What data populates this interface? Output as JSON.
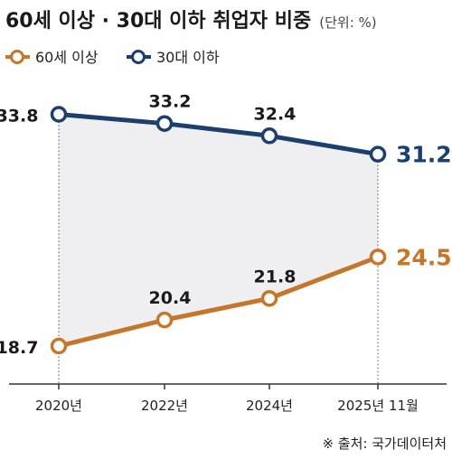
{
  "chart_data": {
    "type": "line",
    "title": "60세 이상 · 30대 이하 취업자 비중",
    "unit_note": "(단위: %)",
    "categories": [
      "2020년",
      "2022년",
      "2024년",
      "2025년 11월"
    ],
    "series": [
      {
        "name": "60세 이상",
        "values": [
          18.7,
          20.4,
          21.8,
          24.5
        ],
        "labels": [
          "18.7",
          "20.4",
          "21.8",
          "24.5"
        ],
        "color": "#c5762a"
      },
      {
        "name": "30대 이하",
        "values": [
          33.8,
          33.2,
          32.4,
          31.2
        ],
        "labels": [
          "33.8",
          "33.2",
          "32.4",
          "31.2"
        ],
        "color": "#1d3f6e"
      }
    ],
    "grid": false,
    "legend_position": "top-left",
    "shaded_area_color": "#efeff1",
    "source": "※ 출처: 국가데이터처"
  }
}
